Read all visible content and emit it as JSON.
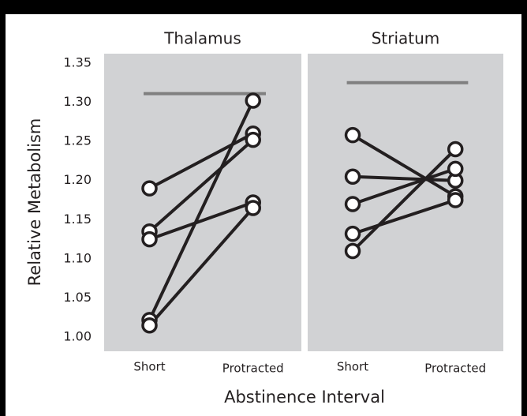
{
  "chart_data": [
    {
      "type": "line",
      "title": "Thalamus",
      "ylabel": "Relative Metabolism",
      "categories": [
        "Short",
        "Protracted"
      ],
      "ylim": [
        0.982,
        1.362
      ],
      "yticks": [
        {
          "value": 1.0,
          "label": "1.00"
        },
        1.05,
        {
          "value": 1.1,
          "label": "1.10"
        },
        1.15,
        {
          "value": 1.2,
          "label": "1.20"
        },
        1.25,
        {
          "value": 1.3,
          "label": "1.30"
        },
        1.35
      ],
      "reference": 1.311,
      "color": "#231f20",
      "series": [
        {
          "values": [
            1.19,
            1.26
          ]
        },
        {
          "values": [
            1.135,
            1.252
          ]
        },
        {
          "values": [
            1.125,
            1.172
          ]
        },
        {
          "values": [
            1.022,
            1.302
          ]
        },
        {
          "values": [
            1.015,
            1.165
          ]
        }
      ]
    },
    {
      "type": "line",
      "title": "Striatum",
      "xlabel": "Abstinence Interval",
      "categories": [
        "Short",
        "Protracted"
      ],
      "ylim": [
        0.982,
        1.362
      ],
      "reference": 1.325,
      "color": "#231f20",
      "series": [
        {
          "values": [
            1.258,
            1.18
          ]
        },
        {
          "values": [
            1.205,
            1.2
          ]
        },
        {
          "values": [
            1.17,
            1.215
          ]
        },
        {
          "values": [
            1.132,
            1.175
          ]
        },
        {
          "values": [
            1.11,
            1.24
          ]
        }
      ]
    }
  ]
}
